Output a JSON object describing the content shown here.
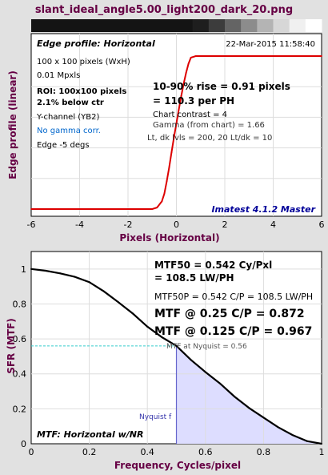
{
  "window_title": "slant_ideal_angle5.00_light200_dark_20.png",
  "strip_gray_levels": [
    20,
    30,
    60,
    100,
    140,
    180,
    215,
    240,
    255
  ],
  "chart_data": [
    {
      "type": "line",
      "title": "Edge profile: Horizontal",
      "date": "22-Mar-2015 11:58:40",
      "xlabel": "Pixels (Horizontal)",
      "ylabel": "Edge profile (linear)",
      "xlim": [
        -6,
        6
      ],
      "ylim": [
        0,
        1
      ],
      "x_ticks": [
        "-6",
        "-4",
        "-2",
        "0",
        "2",
        "4",
        "6"
      ],
      "grid": true,
      "series": [
        {
          "color": "#dd0000",
          "x": [
            -6,
            -1.0,
            -0.8,
            -0.6,
            -0.5,
            -0.4,
            -0.3,
            -0.2,
            -0.1,
            0.0,
            0.1,
            0.2,
            0.3,
            0.4,
            0.5,
            0.6,
            0.8,
            1.0,
            6
          ],
          "y": [
            0.0,
            0.0,
            0.01,
            0.05,
            0.1,
            0.18,
            0.27,
            0.37,
            0.47,
            0.56,
            0.65,
            0.74,
            0.82,
            0.89,
            0.95,
            0.99,
            1.0,
            1.0,
            1.0
          ]
        }
      ],
      "info_lines": [
        "100 x 100 pixels (WxH)",
        "0.01 Mpxls",
        "ROI:  100x100 pixels",
        "2.1% below ctr",
        "Y-channel  (YB2)",
        "No gamma corr.",
        "Edge -5 degs"
      ],
      "results": {
        "rise": "10-90% rise = 0.91 pixels",
        "per_ph": "= 110.3 per PH",
        "contrast": "Chart contrast = 4",
        "gamma": "Gamma (from chart) = 1.66",
        "levels": "Lt, dk lvls = 200, 20   Lt/dk = 10"
      },
      "watermark": "Imatest 4.1.2 Master",
      "colors": {
        "line": "#dd0000",
        "info_accent": "#0066cc",
        "watermark": "#000099",
        "label": "#660044"
      }
    },
    {
      "type": "line",
      "title": "MTF: Horizontal w/NR",
      "xlabel": "Frequency, Cycles/pixel",
      "ylabel": "SFR (MTF)",
      "xlim": [
        0,
        1
      ],
      "ylim": [
        0,
        1.1
      ],
      "x_ticks": [
        "0",
        "0.2",
        "0.4",
        "0.6",
        "0.8",
        "1"
      ],
      "y_ticks": [
        "0",
        "0.2",
        "0.4",
        "0.6",
        "0.8",
        "1"
      ],
      "grid": true,
      "series": [
        {
          "color": "#000000",
          "x": [
            0,
            0.05,
            0.1,
            0.15,
            0.2,
            0.25,
            0.3,
            0.35,
            0.4,
            0.45,
            0.5,
            0.55,
            0.6,
            0.65,
            0.7,
            0.75,
            0.8,
            0.85,
            0.9,
            0.95,
            1.0
          ],
          "y": [
            1.0,
            0.99,
            0.975,
            0.955,
            0.925,
            0.872,
            0.81,
            0.745,
            0.67,
            0.61,
            0.56,
            0.48,
            0.41,
            0.345,
            0.27,
            0.205,
            0.15,
            0.095,
            0.05,
            0.015,
            0.0
          ]
        }
      ],
      "nyquist": {
        "x": 0.5,
        "mtf": 0.56,
        "label": "Nyquist f"
      },
      "results": {
        "mtf50": "MTF50 = 0.542 Cy/Pxl",
        "mtf50_lwph": "= 108.5 LW/PH",
        "mtf50p": "MTF50P = 0.542 C/P = 108.5 LW/PH",
        "mtf_025": "MTF @ 0.25 C/P = 0.872",
        "mtf_0125": "MTF @ 0.125 C/P = 0.967",
        "mtf_nyq": "MTF at Nyquist = 0.56"
      },
      "colors": {
        "line": "#000000",
        "fill": "#ddddff",
        "nyquist": "#6666cc",
        "dashed": "#33cccc",
        "label": "#660044"
      }
    }
  ]
}
